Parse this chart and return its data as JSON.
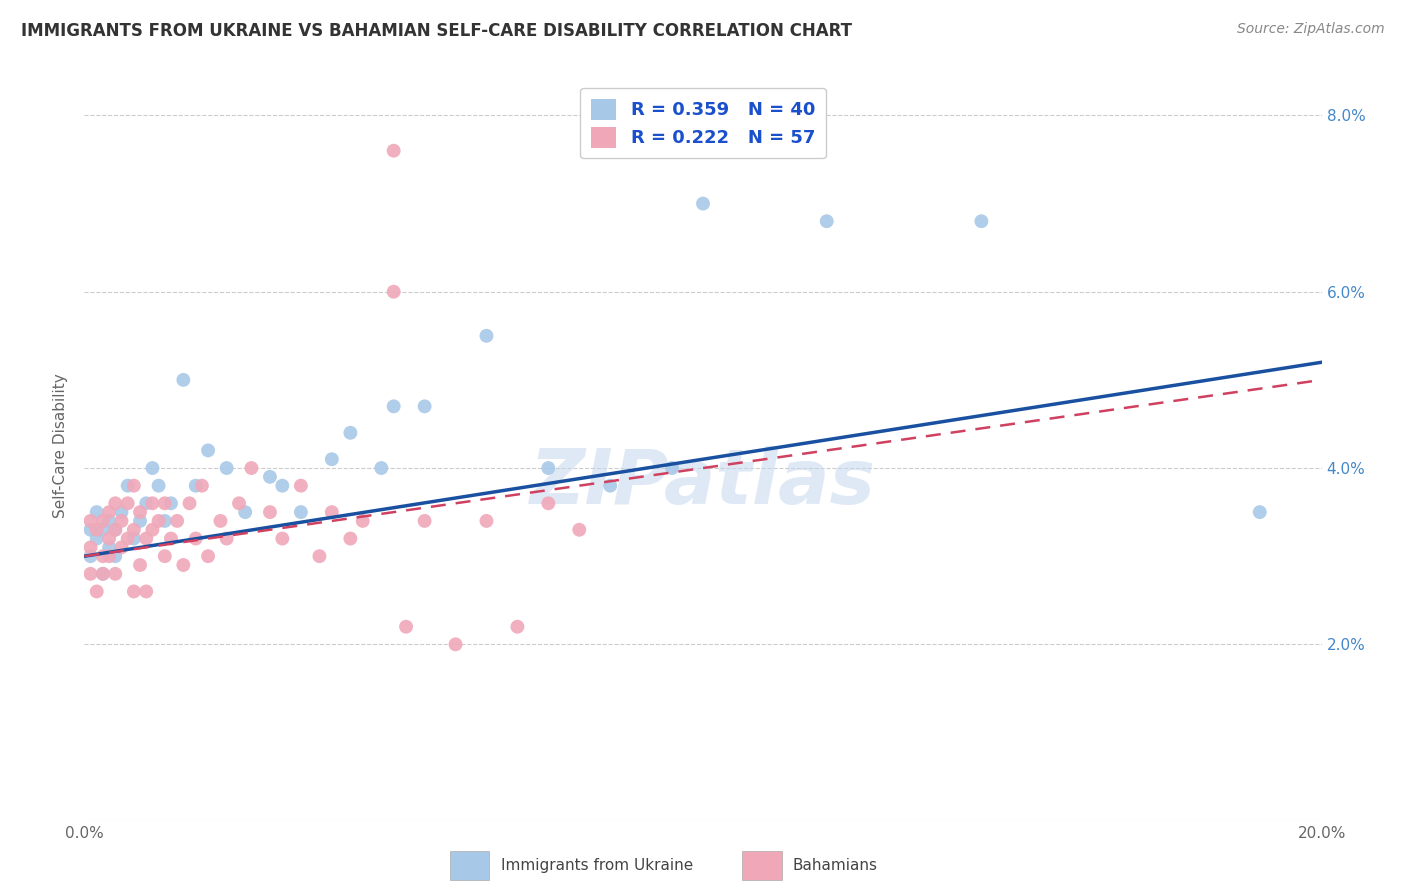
{
  "title": "IMMIGRANTS FROM UKRAINE VS BAHAMIAN SELF-CARE DISABILITY CORRELATION CHART",
  "source": "Source: ZipAtlas.com",
  "ylabel": "Self-Care Disability",
  "xlim": [
    0.0,
    0.2
  ],
  "ylim": [
    0.0,
    0.085
  ],
  "xtick_vals": [
    0.0,
    0.05,
    0.1,
    0.15,
    0.2
  ],
  "xtick_labels": [
    "0.0%",
    "",
    "",
    "",
    "20.0%"
  ],
  "ytick_vals": [
    0.0,
    0.02,
    0.04,
    0.06,
    0.08
  ],
  "ytick_labels_right": [
    "",
    "2.0%",
    "4.0%",
    "6.0%",
    "8.0%"
  ],
  "blue_R": 0.359,
  "blue_N": 40,
  "pink_R": 0.222,
  "pink_N": 57,
  "blue_color": "#a8c8e8",
  "pink_color": "#f0a8b8",
  "blue_line_color": "#1a50a0",
  "pink_line_color": "#d04060",
  "legend_text_color": "#1a50cc",
  "watermark": "ZIPatlas",
  "blue_line_x0": 0.0,
  "blue_line_y0": 0.03,
  "blue_line_x1": 0.2,
  "blue_line_y1": 0.052,
  "pink_line_x0": 0.0,
  "pink_line_y0": 0.03,
  "pink_line_x1": 0.2,
  "pink_line_y1": 0.05,
  "blue_x": [
    0.001,
    0.001,
    0.002,
    0.002,
    0.003,
    0.003,
    0.004,
    0.004,
    0.005,
    0.005,
    0.006,
    0.007,
    0.008,
    0.009,
    0.01,
    0.011,
    0.012,
    0.013,
    0.014,
    0.016,
    0.018,
    0.02,
    0.023,
    0.026,
    0.03,
    0.032,
    0.035,
    0.04,
    0.043,
    0.048,
    0.05,
    0.055,
    0.065,
    0.075,
    0.085,
    0.095,
    0.1,
    0.12,
    0.145,
    0.19
  ],
  "blue_y": [
    0.03,
    0.033,
    0.032,
    0.035,
    0.028,
    0.033,
    0.031,
    0.034,
    0.03,
    0.033,
    0.035,
    0.038,
    0.032,
    0.034,
    0.036,
    0.04,
    0.038,
    0.034,
    0.036,
    0.05,
    0.038,
    0.042,
    0.04,
    0.035,
    0.039,
    0.038,
    0.035,
    0.041,
    0.044,
    0.04,
    0.047,
    0.047,
    0.055,
    0.04,
    0.038,
    0.04,
    0.07,
    0.068,
    0.068,
    0.035
  ],
  "pink_x": [
    0.001,
    0.001,
    0.001,
    0.002,
    0.002,
    0.003,
    0.003,
    0.003,
    0.004,
    0.004,
    0.004,
    0.005,
    0.005,
    0.005,
    0.006,
    0.006,
    0.007,
    0.007,
    0.008,
    0.008,
    0.008,
    0.009,
    0.009,
    0.01,
    0.01,
    0.011,
    0.011,
    0.012,
    0.013,
    0.013,
    0.014,
    0.015,
    0.016,
    0.017,
    0.018,
    0.019,
    0.02,
    0.022,
    0.023,
    0.025,
    0.027,
    0.03,
    0.032,
    0.035,
    0.038,
    0.04,
    0.043,
    0.045,
    0.05,
    0.052,
    0.055,
    0.06,
    0.065,
    0.07,
    0.075,
    0.08,
    0.05
  ],
  "pink_y": [
    0.028,
    0.031,
    0.034,
    0.026,
    0.033,
    0.03,
    0.028,
    0.034,
    0.032,
    0.03,
    0.035,
    0.028,
    0.033,
    0.036,
    0.031,
    0.034,
    0.032,
    0.036,
    0.026,
    0.033,
    0.038,
    0.029,
    0.035,
    0.032,
    0.026,
    0.033,
    0.036,
    0.034,
    0.03,
    0.036,
    0.032,
    0.034,
    0.029,
    0.036,
    0.032,
    0.038,
    0.03,
    0.034,
    0.032,
    0.036,
    0.04,
    0.035,
    0.032,
    0.038,
    0.03,
    0.035,
    0.032,
    0.034,
    0.06,
    0.022,
    0.034,
    0.02,
    0.034,
    0.022,
    0.036,
    0.033,
    0.076
  ]
}
